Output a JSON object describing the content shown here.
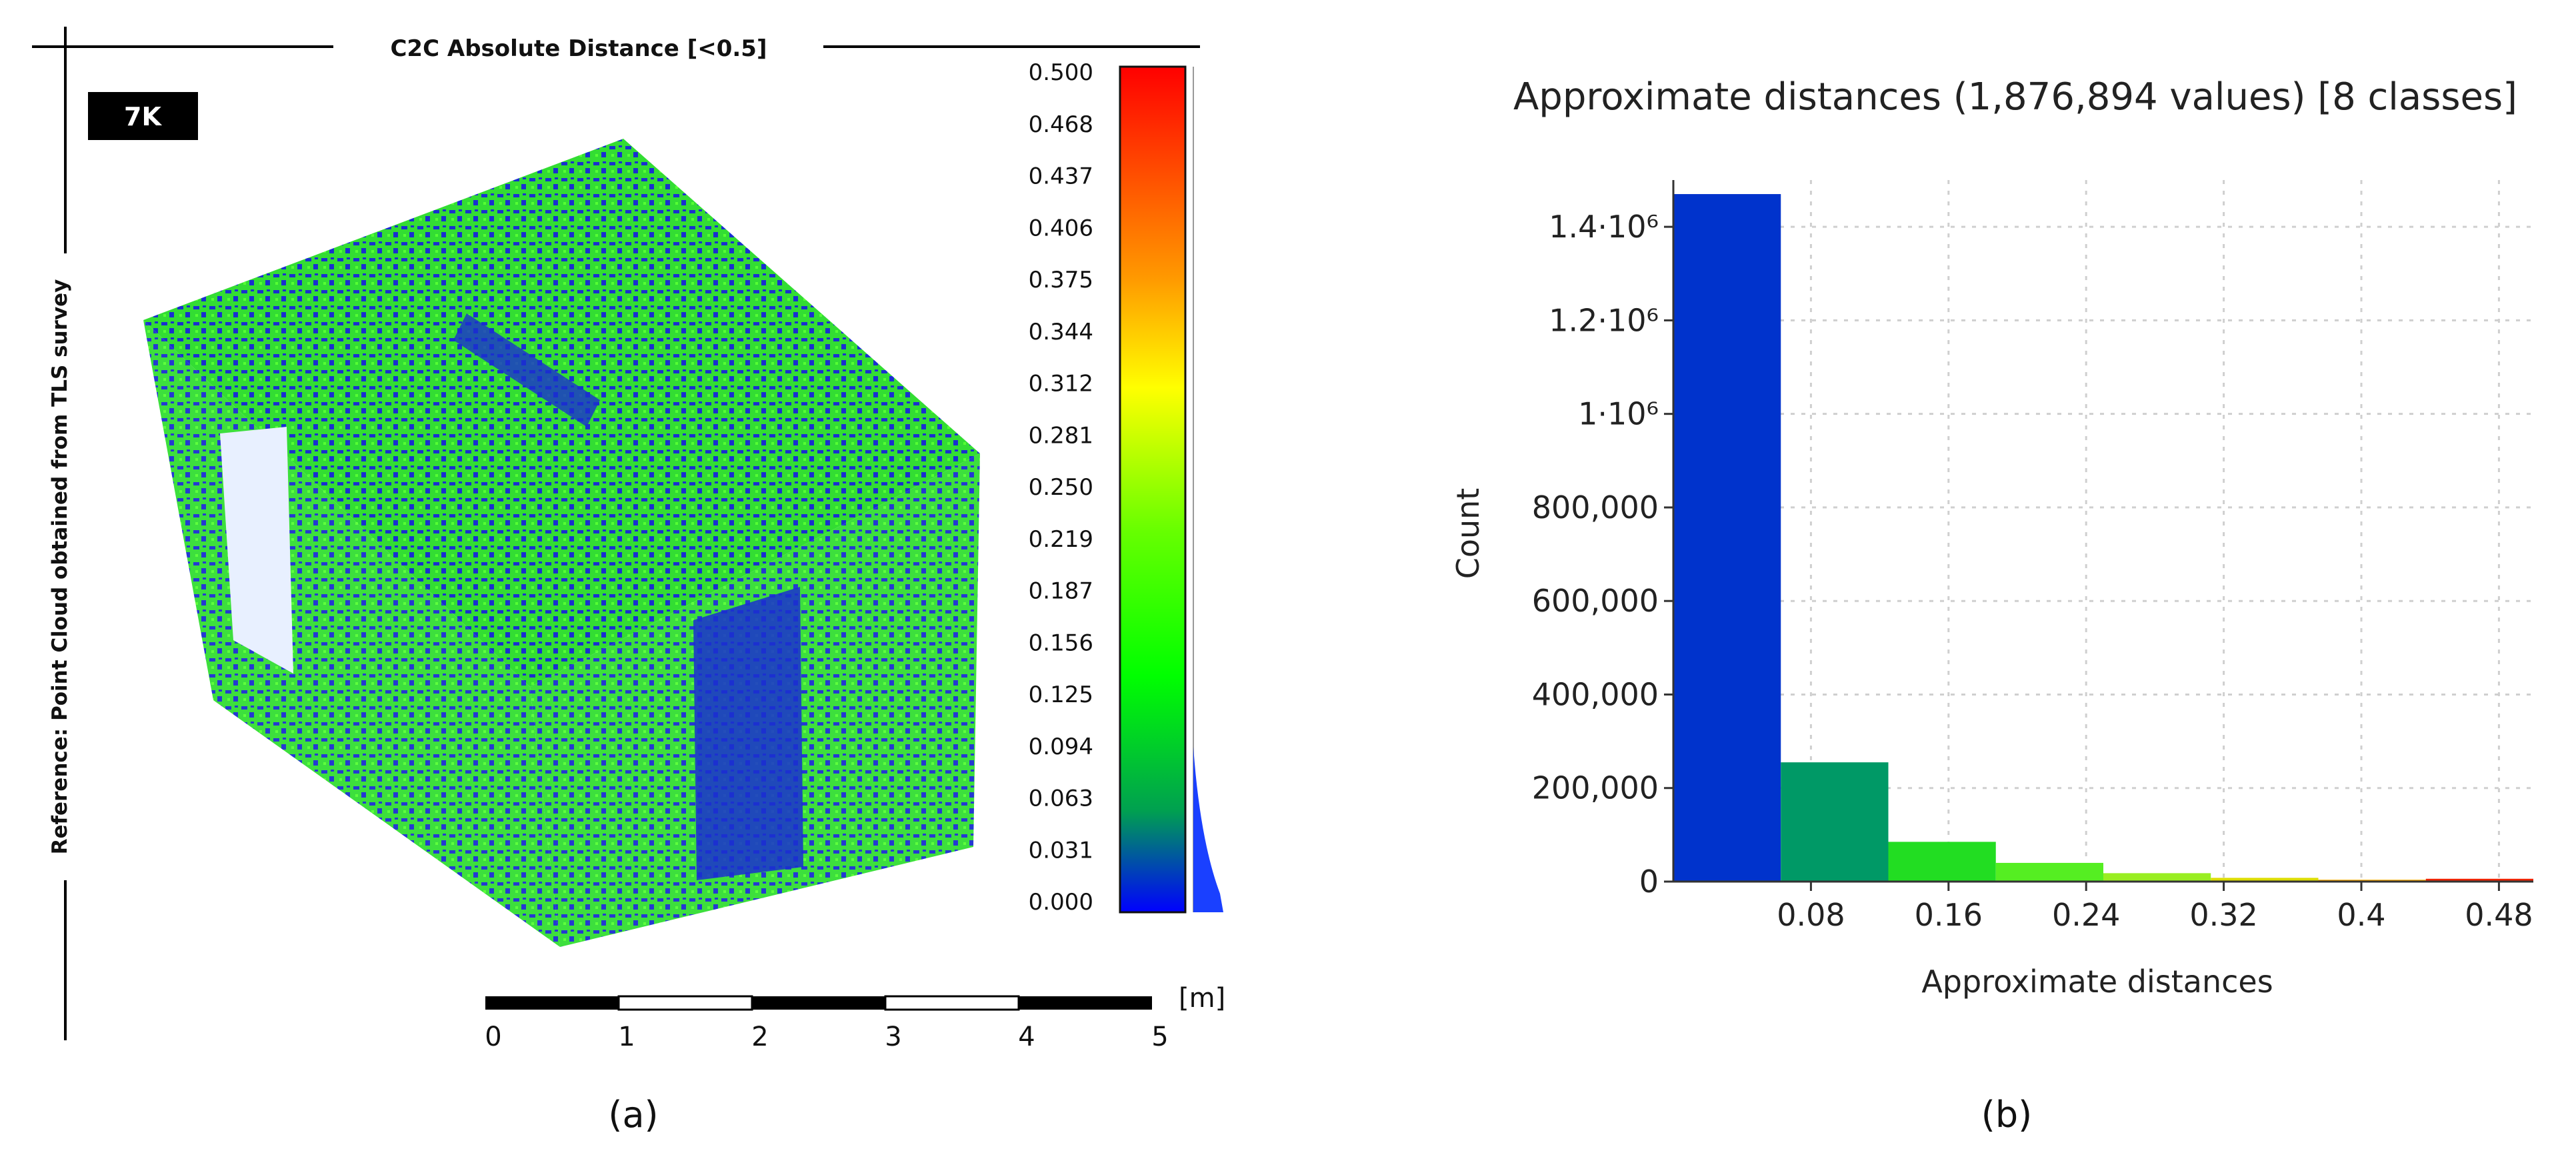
{
  "panel_a": {
    "title": "C2C Absolute Distance [<0.5]",
    "badge": "7K",
    "vertical_label": "Reference: Point Cloud obtained from TLS survey",
    "colorbar_ticks": [
      "0.500",
      "0.468",
      "0.437",
      "0.406",
      "0.375",
      "0.344",
      "0.312",
      "0.281",
      "0.250",
      "0.219",
      "0.187",
      "0.156",
      "0.125",
      "0.094",
      "0.063",
      "0.031",
      "0.000"
    ],
    "colorbar_colors": {
      "top": "#ff0000",
      "upper": "#ffff00",
      "mid": "#00ff00",
      "lower": "#00a040",
      "bottom": "#0000ff"
    },
    "scale_labels": [
      "0",
      "1",
      "2",
      "3",
      "4",
      "5"
    ],
    "scale_unit": "[m]",
    "caption": "(a)"
  },
  "chart_data": {
    "type": "bar",
    "title": "Approximate distances (1,876,894 values) [8 classes]",
    "xlabel": "Approximate distances",
    "ylabel": "Count",
    "x_ticks": [
      "0.08",
      "0.16",
      "0.24",
      "0.32",
      "0.4",
      "0.48"
    ],
    "x_tick_values": [
      0.08,
      0.16,
      0.24,
      0.32,
      0.4,
      0.48
    ],
    "y_ticks": [
      "0",
      "200,000",
      "400,000",
      "600,000",
      "800,000",
      "1·10⁶",
      "1.2·10⁶",
      "1.4·10⁶"
    ],
    "y_tick_values": [
      0,
      200000,
      400000,
      600000,
      800000,
      1000000,
      1200000,
      1400000
    ],
    "xlim": [
      0,
      0.5
    ],
    "ylim": [
      0,
      1500000
    ],
    "grid": true,
    "bins": [
      {
        "start": 0.0,
        "end": 0.0625,
        "value": 1470000,
        "color": "#0033cc"
      },
      {
        "start": 0.0625,
        "end": 0.125,
        "value": 255000,
        "color": "#009966"
      },
      {
        "start": 0.125,
        "end": 0.1875,
        "value": 85000,
        "color": "#22dd22"
      },
      {
        "start": 0.1875,
        "end": 0.25,
        "value": 40000,
        "color": "#55ee22"
      },
      {
        "start": 0.25,
        "end": 0.3125,
        "value": 18000,
        "color": "#99ee22"
      },
      {
        "start": 0.3125,
        "end": 0.375,
        "value": 8000,
        "color": "#dddd00"
      },
      {
        "start": 0.375,
        "end": 0.4375,
        "value": 4000,
        "color": "#ffaa00"
      },
      {
        "start": 0.4375,
        "end": 0.5,
        "value": 6000,
        "color": "#ee2200"
      }
    ],
    "caption": "(b)"
  }
}
